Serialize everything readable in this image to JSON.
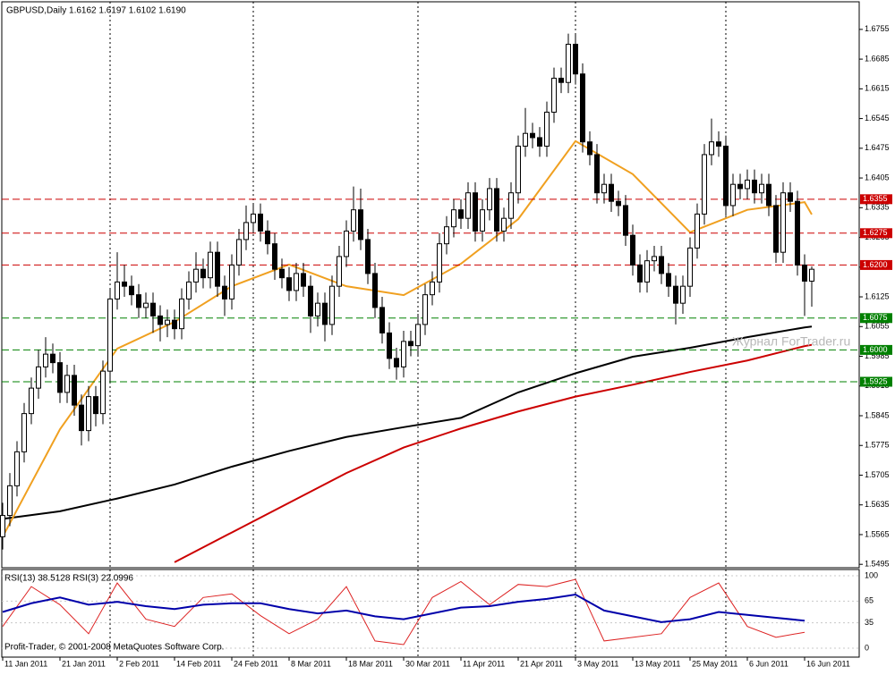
{
  "chart_data": [
    {
      "type": "candlestick",
      "title": "GBPUSD,Daily  1.6162 1.6197 1.6102 1.6190",
      "watermark": "Журнал ForTrader.ru",
      "copyright": "Profit-Trader, © 2001-2008 MetaQuotes Software Corp.",
      "categories": [
        "11 Jan 2011",
        null,
        null,
        null,
        null,
        null,
        null,
        null,
        "21 Jan 2011",
        null,
        null,
        null,
        null,
        null,
        null,
        null,
        "2 Feb 2011",
        null,
        null,
        null,
        null,
        null,
        null,
        null,
        "14 Feb 2011",
        null,
        null,
        null,
        null,
        null,
        null,
        null,
        "24 Feb 2011",
        null,
        null,
        null,
        null,
        null,
        null,
        null,
        "8 Mar 2011",
        null,
        null,
        null,
        null,
        null,
        null,
        null,
        "18 Mar 2011",
        null,
        null,
        null,
        null,
        null,
        null,
        null,
        "30 Mar 2011",
        null,
        null,
        null,
        null,
        null,
        null,
        null,
        "11 Apr 2011",
        null,
        null,
        null,
        null,
        null,
        null,
        null,
        "21 Apr 2011",
        null,
        null,
        null,
        null,
        null,
        null,
        null,
        "3 May 2011",
        null,
        null,
        null,
        null,
        null,
        null,
        null,
        "13 May 2011",
        null,
        null,
        null,
        null,
        null,
        null,
        null,
        "25 May 2011",
        null,
        null,
        null,
        null,
        null,
        null,
        null,
        "6 Jun 2011",
        null,
        null,
        null,
        null,
        null,
        null,
        null,
        "16 Jun 2011",
        null
      ],
      "open": [
        1.556,
        1.561,
        1.568,
        1.576,
        1.585,
        1.591,
        1.596,
        1.599,
        1.597,
        1.59,
        1.594,
        1.587,
        1.581,
        1.589,
        1.585,
        1.595,
        1.612,
        1.616,
        1.615,
        1.613,
        1.61,
        1.611,
        1.608,
        1.606,
        1.607,
        1.605,
        1.612,
        1.616,
        1.619,
        1.617,
        1.623,
        1.615,
        1.612,
        1.62,
        1.626,
        1.63,
        1.632,
        1.628,
        1.625,
        1.619,
        1.617,
        1.614,
        1.618,
        1.615,
        1.608,
        1.611,
        1.606,
        1.615,
        1.622,
        1.628,
        1.633,
        1.626,
        1.618,
        1.61,
        1.604,
        1.598,
        1.596,
        1.602,
        1.601,
        1.606,
        1.613,
        1.616,
        1.625,
        1.629,
        1.633,
        1.631,
        1.637,
        1.628,
        1.633,
        1.638,
        1.628,
        1.631,
        1.637,
        1.648,
        1.651,
        1.65,
        1.648,
        1.656,
        1.664,
        1.663,
        1.672,
        1.665,
        1.649,
        1.646,
        1.637,
        1.639,
        1.635,
        1.634,
        1.627,
        1.62,
        1.616,
        1.621,
        1.622,
        1.618,
        1.615,
        1.611,
        1.615,
        1.624,
        1.632,
        1.646,
        1.649,
        1.648,
        1.634,
        1.639,
        1.638,
        1.64,
        1.637,
        1.639,
        1.634,
        1.623,
        1.637,
        1.635,
        1.62,
        1.6162
      ],
      "high": [
        1.564,
        1.571,
        1.5785,
        1.5875,
        1.5935,
        1.6,
        1.603,
        1.6015,
        1.5995,
        1.5965,
        1.5965,
        1.5895,
        1.5915,
        1.5915,
        1.5975,
        1.6145,
        1.623,
        1.62,
        1.6175,
        1.6155,
        1.6135,
        1.6135,
        1.6105,
        1.6095,
        1.6095,
        1.6145,
        1.6185,
        1.623,
        1.6215,
        1.6255,
        1.6255,
        1.6175,
        1.6225,
        1.6285,
        1.634,
        1.6345,
        1.6345,
        1.6305,
        1.6275,
        1.6215,
        1.6195,
        1.6205,
        1.6205,
        1.6175,
        1.6135,
        1.6135,
        1.6175,
        1.6245,
        1.6305,
        1.6385,
        1.638,
        1.6285,
        1.6205,
        1.6125,
        1.6065,
        1.6005,
        1.6045,
        1.6045,
        1.6085,
        1.6155,
        1.6185,
        1.6275,
        1.6315,
        1.6355,
        1.6355,
        1.6395,
        1.6395,
        1.6355,
        1.6405,
        1.6405,
        1.6335,
        1.6395,
        1.6505,
        1.657,
        1.6535,
        1.6525,
        1.6585,
        1.6665,
        1.6665,
        1.6745,
        1.6745,
        1.6675,
        1.6515,
        1.6485,
        1.6415,
        1.6415,
        1.6375,
        1.6365,
        1.6295,
        1.6225,
        1.6235,
        1.6245,
        1.6245,
        1.6205,
        1.6175,
        1.6175,
        1.6265,
        1.6345,
        1.6485,
        1.6545,
        1.6515,
        1.6505,
        1.6415,
        1.6415,
        1.6425,
        1.6425,
        1.6415,
        1.6415,
        1.6365,
        1.6395,
        1.6395,
        1.6375,
        1.6225,
        1.6197
      ],
      "low": [
        1.553,
        1.5585,
        1.5655,
        1.5735,
        1.5825,
        1.5885,
        1.5935,
        1.5945,
        1.5875,
        1.5875,
        1.5845,
        1.5775,
        1.5785,
        1.582,
        1.5825,
        1.5925,
        1.6095,
        1.6125,
        1.6105,
        1.6075,
        1.6075,
        1.604,
        1.602,
        1.603,
        1.6025,
        1.6025,
        1.6095,
        1.6135,
        1.6145,
        1.6145,
        1.6125,
        1.608,
        1.6095,
        1.6175,
        1.6235,
        1.6275,
        1.6255,
        1.6225,
        1.6165,
        1.6145,
        1.6115,
        1.6115,
        1.6125,
        1.604,
        1.6055,
        1.602,
        1.6035,
        1.6125,
        1.6195,
        1.6255,
        1.6235,
        1.6155,
        1.6075,
        1.6015,
        1.5955,
        1.593,
        1.5935,
        1.5985,
        1.5985,
        1.6035,
        1.6105,
        1.6135,
        1.6225,
        1.6265,
        1.6285,
        1.6285,
        1.6255,
        1.6255,
        1.6305,
        1.6255,
        1.6255,
        1.6285,
        1.6345,
        1.6455,
        1.6475,
        1.6455,
        1.6455,
        1.6535,
        1.6605,
        1.6605,
        1.6625,
        1.6465,
        1.6435,
        1.6345,
        1.6345,
        1.6325,
        1.6315,
        1.6245,
        1.6175,
        1.6135,
        1.6135,
        1.6185,
        1.6155,
        1.6125,
        1.606,
        1.6085,
        1.6125,
        1.6215,
        1.6295,
        1.6435,
        1.6455,
        1.6315,
        1.6315,
        1.6355,
        1.6355,
        1.6345,
        1.6345,
        1.6315,
        1.6205,
        1.6205,
        1.6325,
        1.6175,
        1.608,
        1.6102
      ],
      "close": [
        1.561,
        1.568,
        1.576,
        1.585,
        1.591,
        1.596,
        1.599,
        1.597,
        1.59,
        1.594,
        1.587,
        1.581,
        1.589,
        1.585,
        1.595,
        1.612,
        1.616,
        1.615,
        1.613,
        1.61,
        1.611,
        1.608,
        1.606,
        1.607,
        1.605,
        1.612,
        1.616,
        1.619,
        1.617,
        1.623,
        1.615,
        1.612,
        1.62,
        1.626,
        1.63,
        1.632,
        1.628,
        1.625,
        1.619,
        1.617,
        1.614,
        1.618,
        1.615,
        1.608,
        1.611,
        1.606,
        1.615,
        1.622,
        1.628,
        1.633,
        1.626,
        1.618,
        1.61,
        1.604,
        1.598,
        1.596,
        1.602,
        1.601,
        1.606,
        1.613,
        1.616,
        1.625,
        1.629,
        1.633,
        1.631,
        1.637,
        1.628,
        1.633,
        1.638,
        1.628,
        1.631,
        1.637,
        1.648,
        1.651,
        1.65,
        1.648,
        1.656,
        1.664,
        1.663,
        1.672,
        1.665,
        1.649,
        1.646,
        1.637,
        1.639,
        1.635,
        1.634,
        1.627,
        1.62,
        1.616,
        1.621,
        1.622,
        1.618,
        1.615,
        1.611,
        1.615,
        1.624,
        1.632,
        1.646,
        1.649,
        1.648,
        1.634,
        1.639,
        1.638,
        1.64,
        1.637,
        1.639,
        1.634,
        1.623,
        1.637,
        1.635,
        1.62,
        1.6162,
        1.619
      ],
      "up_color": "#ffffff",
      "down_color": "#000000",
      "wick_color": "#000000",
      "overlay_x": [
        0,
        8,
        16,
        24,
        32,
        40,
        48,
        56,
        64,
        72,
        80,
        88,
        96,
        104,
        112,
        113
      ],
      "overlays": [
        {
          "color": "#000000",
          "values": [
            1.5602,
            1.562,
            1.565,
            1.5683,
            1.5725,
            1.5762,
            1.5795,
            1.5818,
            1.584,
            1.59,
            1.5945,
            1.5984,
            1.6005,
            1.603,
            1.6053,
            1.6055
          ]
        },
        {
          "color": "#cc0000",
          "values": [
            null,
            null,
            null,
            1.55,
            1.557,
            1.564,
            1.571,
            1.577,
            1.5815,
            1.5855,
            1.589,
            1.5918,
            1.5948,
            1.5975,
            1.6009,
            1.6012
          ]
        },
        {
          "color": "#f0a020",
          "values": [
            1.556,
            1.5813,
            1.6003,
            1.6066,
            1.615,
            1.6201,
            1.615,
            1.6129,
            1.6203,
            1.6308,
            1.6492,
            1.6414,
            1.6277,
            1.633,
            1.6348,
            1.6319
          ]
        }
      ],
      "month_starts": [
        15,
        35,
        58,
        80,
        101
      ],
      "levels": [
        {
          "value": 1.6355,
          "color": "#cc0000"
        },
        {
          "value": 1.6275,
          "color": "#cc0000"
        },
        {
          "value": {
            "value": 1.62,
            "label": "1.6200"
          },
          "color": "#cc0000"
        },
        {
          "value": 1.6075,
          "color": "#008000"
        },
        {
          "value": {
            "value": 1.6,
            "label": "1.6000"
          },
          "color": "#008000"
        },
        {
          "value": 1.5925,
          "color": "#008000"
        }
      ],
      "ylim": [
        1.5487,
        1.682
      ],
      "yticks": [
        1.6755,
        1.6685,
        1.6615,
        1.6545,
        1.6475,
        1.6405,
        1.6335,
        1.6265,
        1.6195,
        1.6125,
        1.6055,
        1.5985,
        1.5915,
        1.5845,
        1.5775,
        1.5705,
        1.5635,
        1.5565,
        1.5495
      ]
    },
    {
      "type": "line",
      "title": "RSI(13) 38.5128 RSI(3) 22.0996",
      "x": [
        0,
        4,
        8,
        12,
        16,
        20,
        24,
        28,
        32,
        36,
        40,
        44,
        48,
        52,
        56,
        60,
        64,
        68,
        72,
        76,
        80,
        84,
        88,
        92,
        96,
        100,
        104,
        108,
        112
      ],
      "series": [
        {
          "color": "#0000aa",
          "values": [
            50,
            62,
            70,
            60,
            64,
            58,
            54,
            60,
            62,
            62,
            54,
            48,
            52,
            44,
            40,
            48,
            56,
            58,
            64,
            68,
            74,
            52,
            44,
            36,
            40,
            50,
            46,
            42,
            38
          ]
        },
        {
          "color": "#dd2222",
          "values": [
            30,
            85,
            60,
            20,
            90,
            40,
            30,
            70,
            75,
            45,
            20,
            40,
            85,
            10,
            5,
            70,
            92,
            60,
            88,
            85,
            95,
            10,
            15,
            20,
            70,
            90,
            30,
            15,
            22
          ]
        }
      ],
      "ylim": [
        -12.3,
        108.6
      ],
      "yticks": [
        0,
        35,
        65,
        100
      ]
    }
  ]
}
